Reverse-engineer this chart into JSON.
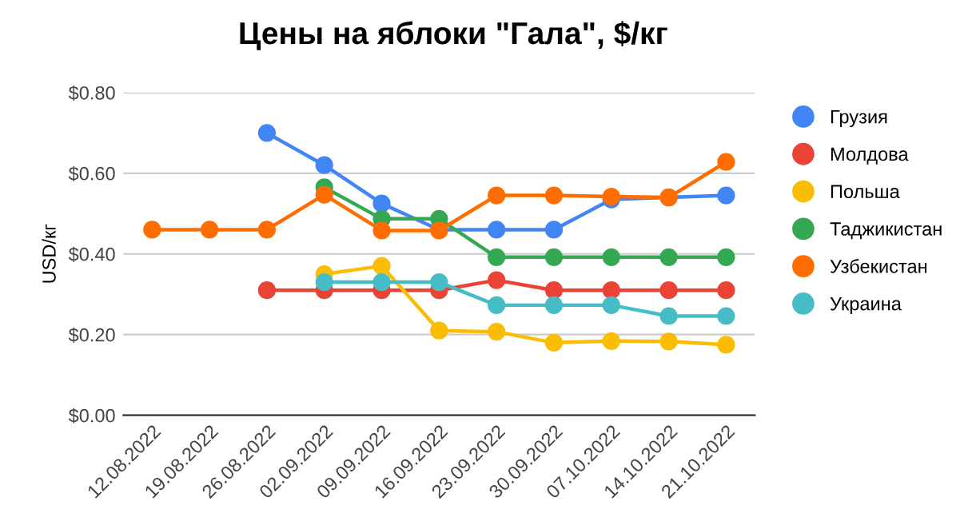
{
  "chart_data": {
    "type": "line",
    "title": "Цены на яблоки \"Гала\", $/кг",
    "ylabel": "USD/кг",
    "categories": [
      "12.08.2022",
      "19.08.2022",
      "26.08.2022",
      "02.09.2022",
      "09.09.2022",
      "16.09.2022",
      "23.09.2022",
      "30.09.2022",
      "07.10.2022",
      "14.10.2022",
      "21.10.2022"
    ],
    "series": [
      {
        "name": "Грузия",
        "color": "#4285f4",
        "values": [
          null,
          null,
          0.7,
          0.62,
          0.525,
          0.46,
          0.46,
          0.46,
          0.535,
          0.54,
          0.545
        ]
      },
      {
        "name": "Молдова",
        "color": "#ea4335",
        "values": [
          null,
          null,
          0.31,
          0.31,
          0.31,
          0.31,
          0.335,
          0.31,
          0.31,
          0.31,
          0.31
        ]
      },
      {
        "name": "Польша",
        "color": "#fbbc04",
        "values": [
          null,
          null,
          null,
          0.35,
          0.37,
          0.21,
          0.207,
          0.18,
          0.184,
          0.183,
          0.175
        ]
      },
      {
        "name": "Таджикистан",
        "color": "#34a853",
        "values": [
          null,
          null,
          null,
          0.565,
          0.487,
          0.487,
          0.392,
          0.392,
          0.392,
          0.392,
          0.392
        ]
      },
      {
        "name": "Узбекистан",
        "color": "#ff6d01",
        "values": [
          0.46,
          0.46,
          0.46,
          0.547,
          0.458,
          0.458,
          0.545,
          0.545,
          0.542,
          0.54,
          0.628
        ]
      },
      {
        "name": "Украина",
        "color": "#46bdc6",
        "values": [
          null,
          null,
          null,
          0.33,
          0.33,
          0.33,
          0.273,
          0.273,
          0.273,
          0.246,
          0.246
        ]
      }
    ],
    "ylim": [
      0,
      0.8
    ],
    "yticks": [
      {
        "value": 0,
        "label": "$0.00"
      },
      {
        "value": 0.2,
        "label": "$0.20"
      },
      {
        "value": 0.4,
        "label": "$0.40"
      },
      {
        "value": 0.6,
        "label": "$0.60"
      },
      {
        "value": 0.8,
        "label": "$0.80"
      }
    ],
    "grid": "y",
    "legend": "right",
    "marker": "circle",
    "line_style": "solid"
  }
}
